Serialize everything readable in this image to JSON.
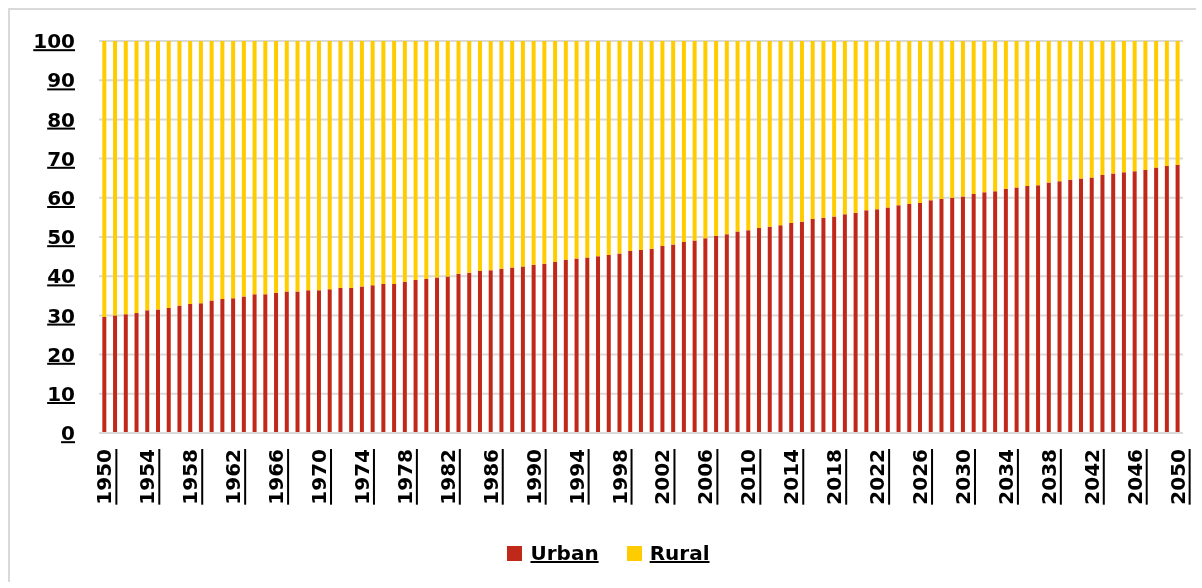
{
  "chart_data": {
    "type": "bar",
    "stacked": true,
    "categories": [
      "1950",
      null,
      null,
      null,
      "1954",
      null,
      null,
      null,
      "1958",
      null,
      null,
      null,
      "1962",
      null,
      null,
      null,
      "1966",
      null,
      null,
      null,
      "1970",
      null,
      null,
      null,
      "1974",
      null,
      null,
      null,
      "1978",
      null,
      null,
      null,
      "1982",
      null,
      null,
      null,
      "1986",
      null,
      null,
      null,
      "1990",
      null,
      null,
      null,
      "1994",
      null,
      null,
      null,
      "1998",
      null,
      null,
      null,
      "2002",
      null,
      null,
      null,
      "2006",
      null,
      null,
      null,
      "2010",
      null,
      null,
      null,
      "2014",
      null,
      null,
      null,
      "2018",
      null,
      null,
      null,
      "2022",
      null,
      null,
      null,
      "2026",
      null,
      null,
      null,
      "2030",
      null,
      null,
      null,
      "2034",
      null,
      null,
      null,
      "2038",
      null,
      null,
      null,
      "2042",
      null,
      null,
      null,
      "2046",
      null,
      null,
      null,
      "2050"
    ],
    "series": [
      {
        "name": "Urban",
        "color": "#c0281a",
        "values": [
          29.6,
          30.0,
          30.3,
          30.6,
          31.3,
          31.5,
          31.9,
          32.5,
          32.9,
          33.1,
          33.8,
          34.2,
          34.4,
          34.8,
          35.4,
          35.4,
          35.8,
          36.1,
          36.1,
          36.4,
          36.4,
          36.7,
          37.0,
          37.0,
          37.4,
          37.7,
          38.0,
          38.0,
          38.6,
          39.0,
          39.3,
          39.7,
          39.9,
          40.6,
          40.9,
          41.3,
          41.5,
          41.9,
          42.2,
          42.5,
          42.9,
          43.2,
          43.6,
          44.2,
          44.5,
          44.8,
          45.1,
          45.4,
          45.8,
          46.4,
          46.7,
          47.0,
          47.7,
          48.1,
          48.7,
          49.1,
          49.7,
          50.3,
          50.7,
          51.4,
          51.7,
          52.3,
          52.6,
          53.0,
          53.6,
          53.9,
          54.6,
          54.9,
          55.2,
          55.8,
          56.2,
          56.8,
          57.1,
          57.5,
          58.1,
          58.4,
          58.7,
          59.4,
          59.7,
          60.0,
          60.3,
          61.0,
          61.4,
          61.7,
          62.3,
          62.6,
          63.0,
          63.2,
          63.9,
          64.2,
          64.6,
          64.9,
          65.2,
          65.8,
          66.2,
          66.5,
          66.8,
          67.1,
          67.7,
          68.1,
          68.4
        ]
      },
      {
        "name": "Rural",
        "color": "#ffcc00",
        "values": [
          70.4,
          70.0,
          69.7,
          69.4,
          68.7,
          68.5,
          68.1,
          67.5,
          67.1,
          66.9,
          66.2,
          65.8,
          65.6,
          65.2,
          64.6,
          64.6,
          64.2,
          63.9,
          63.9,
          63.6,
          63.6,
          63.3,
          63.0,
          63.0,
          62.6,
          62.3,
          62.0,
          62.0,
          61.4,
          61.0,
          60.7,
          60.3,
          60.1,
          59.4,
          59.1,
          58.7,
          58.5,
          58.1,
          57.8,
          57.5,
          57.1,
          56.8,
          56.4,
          55.8,
          55.5,
          55.2,
          54.9,
          54.6,
          54.2,
          53.6,
          53.3,
          53.0,
          52.3,
          51.9,
          51.3,
          50.9,
          50.3,
          49.7,
          49.3,
          48.6,
          48.3,
          47.7,
          47.4,
          47.0,
          46.4,
          46.1,
          45.4,
          45.1,
          44.8,
          44.2,
          43.8,
          43.2,
          42.9,
          42.5,
          41.9,
          41.6,
          41.3,
          40.6,
          40.3,
          40.0,
          39.7,
          39.0,
          38.6,
          38.3,
          37.7,
          37.4,
          37.0,
          36.8,
          36.1,
          35.8,
          35.4,
          35.1,
          34.8,
          34.2,
          33.8,
          33.5,
          33.2,
          32.9,
          32.3,
          31.9,
          31.6
        ]
      }
    ],
    "ylim": [
      0,
      100
    ],
    "yticks": [
      0,
      10,
      20,
      30,
      40,
      50,
      60,
      70,
      80,
      90,
      100
    ],
    "grid": "y",
    "legend": "bottom"
  }
}
